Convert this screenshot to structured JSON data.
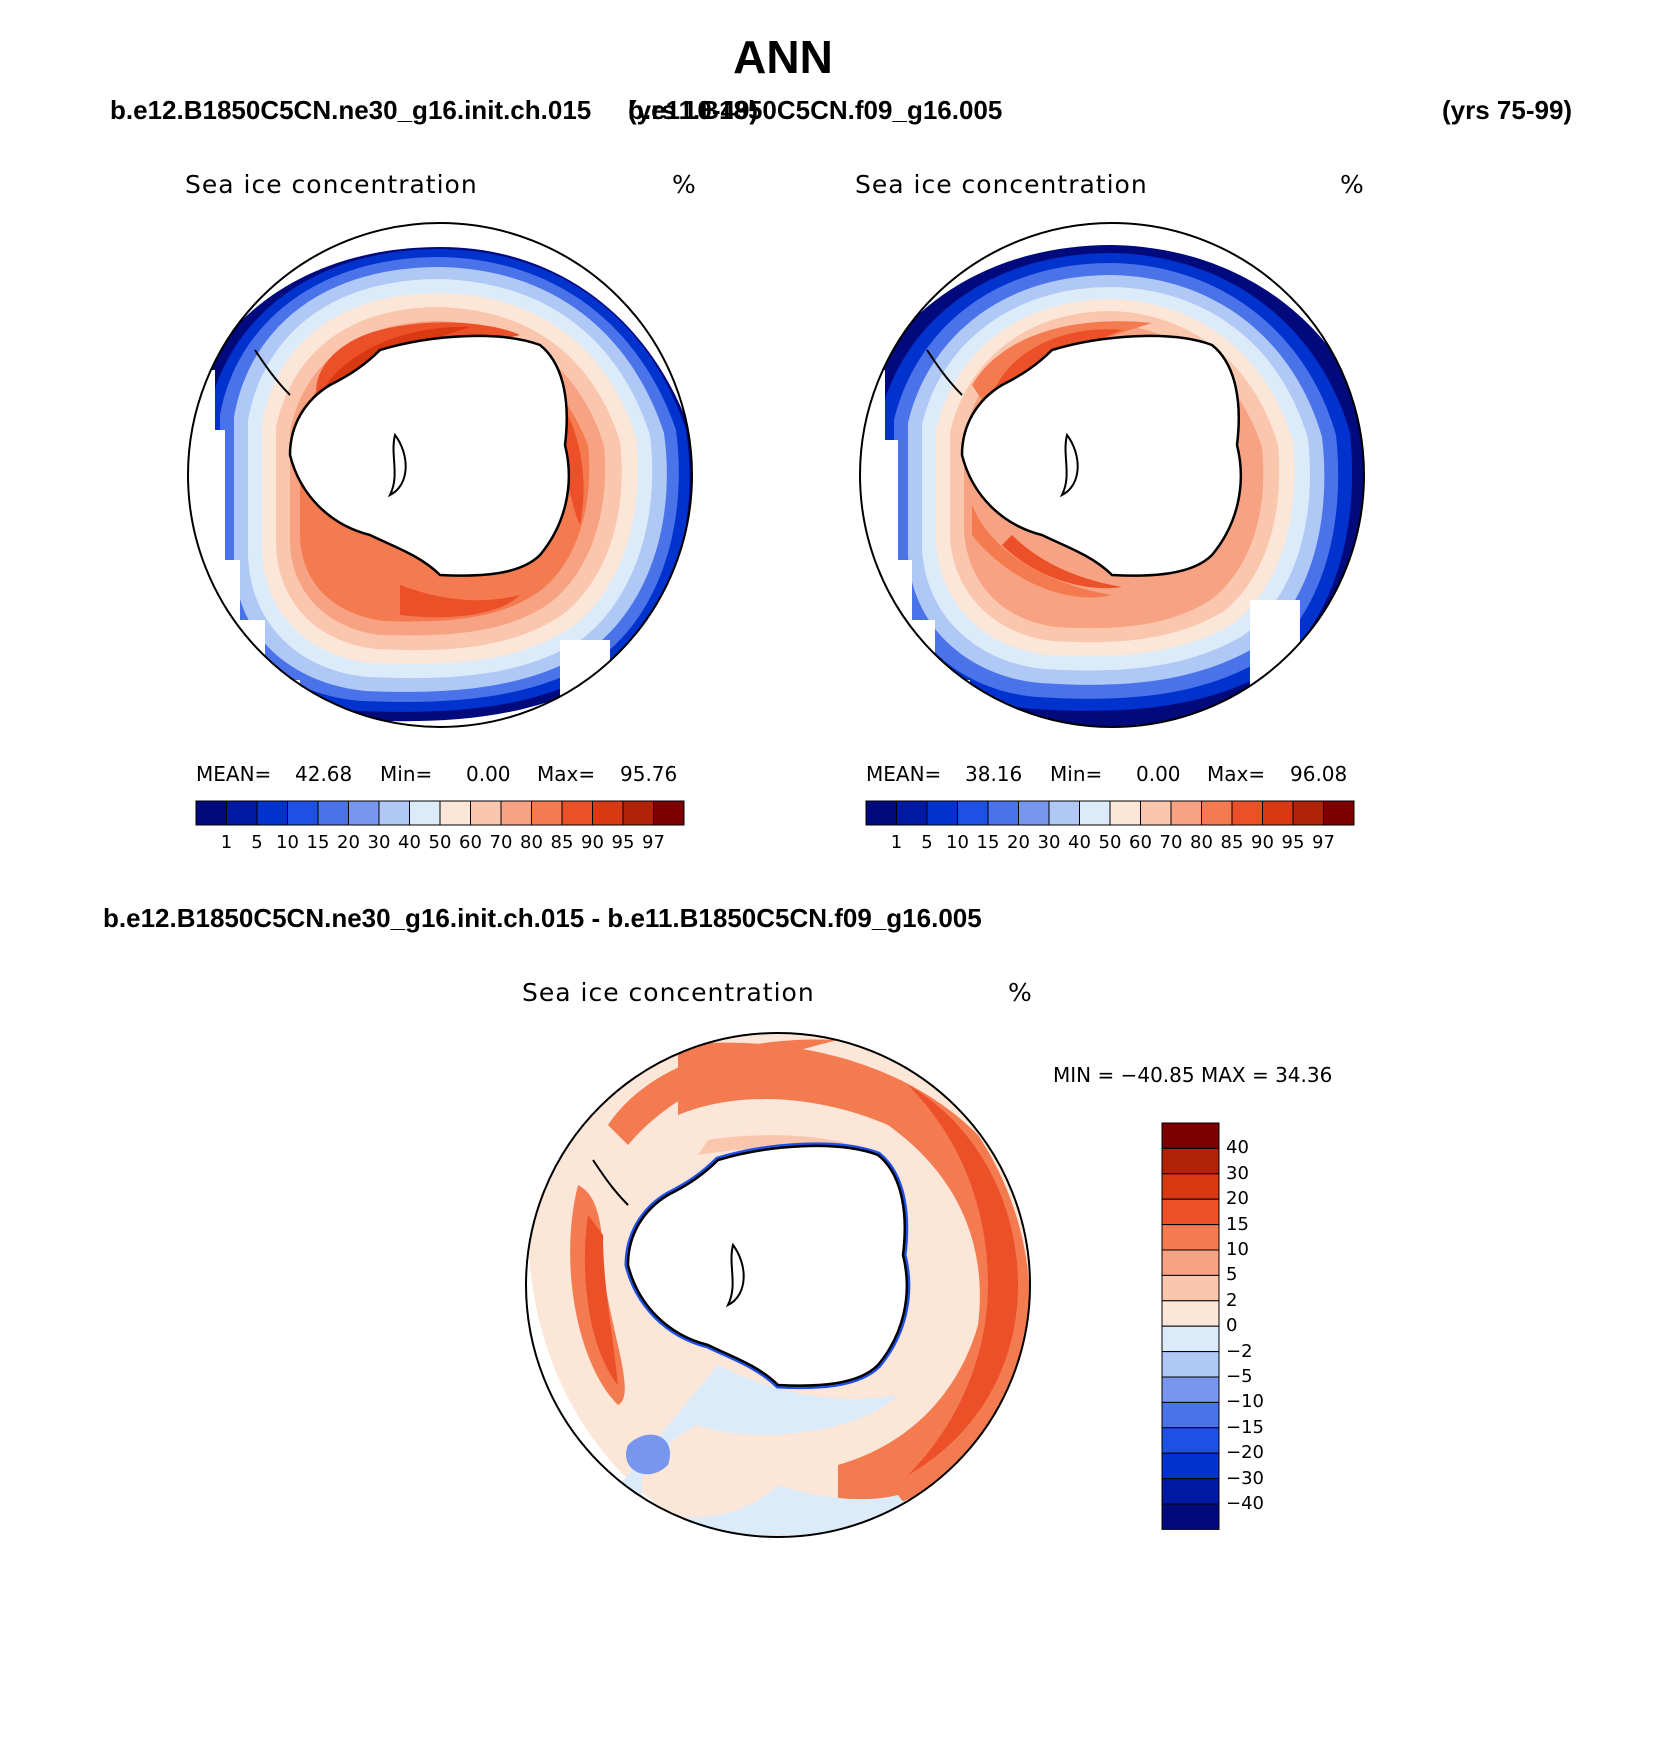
{
  "title": "ANN",
  "panels": [
    {
      "case": "b.e12.B1850C5CN.ne30_g16.init.ch.015",
      "years": "(yrs 10-49)",
      "subtitle": "Sea ice concentration",
      "units": "%",
      "stats": {
        "mean_label": "MEAN=",
        "mean": "42.68",
        "min_label": "Min=",
        "min": "0.00",
        "max_label": "Max=",
        "max": "95.76"
      }
    },
    {
      "case": "b.e11.B1850C5CN.f09_g16.005",
      "years": "(yrs 75-99)",
      "subtitle": "Sea ice concentration",
      "units": "%",
      "stats": {
        "mean_label": "MEAN=",
        "mean": "38.16",
        "min_label": "Min=",
        "min": "0.00",
        "max_label": "Max=",
        "max": "96.08"
      }
    }
  ],
  "diff": {
    "title": "b.e12.B1850C5CN.ne30_g16.init.ch.015 - b.e11.B1850C5CN.f09_g16.005",
    "subtitle": "Sea ice concentration",
    "units": "%",
    "minmax": "MIN = −40.85 MAX =   34.36"
  },
  "colorbar_levels": [
    "1",
    "5",
    "10",
    "15",
    "20",
    "30",
    "40",
    "50",
    "60",
    "70",
    "80",
    "85",
    "90",
    "95",
    "97"
  ],
  "diff_levels": [
    "40",
    "30",
    "20",
    "15",
    "10",
    "5",
    "2",
    "0",
    "−2",
    "−5",
    "−10",
    "−15",
    "−20",
    "−30",
    "−40"
  ],
  "colors": [
    "#000a7d",
    "#0019a5",
    "#0032cd",
    "#1e50e6",
    "#4a73ea",
    "#7896ee",
    "#afc8f5",
    "#dcebfa",
    "#fbe6d8",
    "#fac6ae",
    "#f7a282",
    "#f47a50",
    "#ec5028",
    "#d83812",
    "#b02306",
    "#7d0000"
  ]
}
